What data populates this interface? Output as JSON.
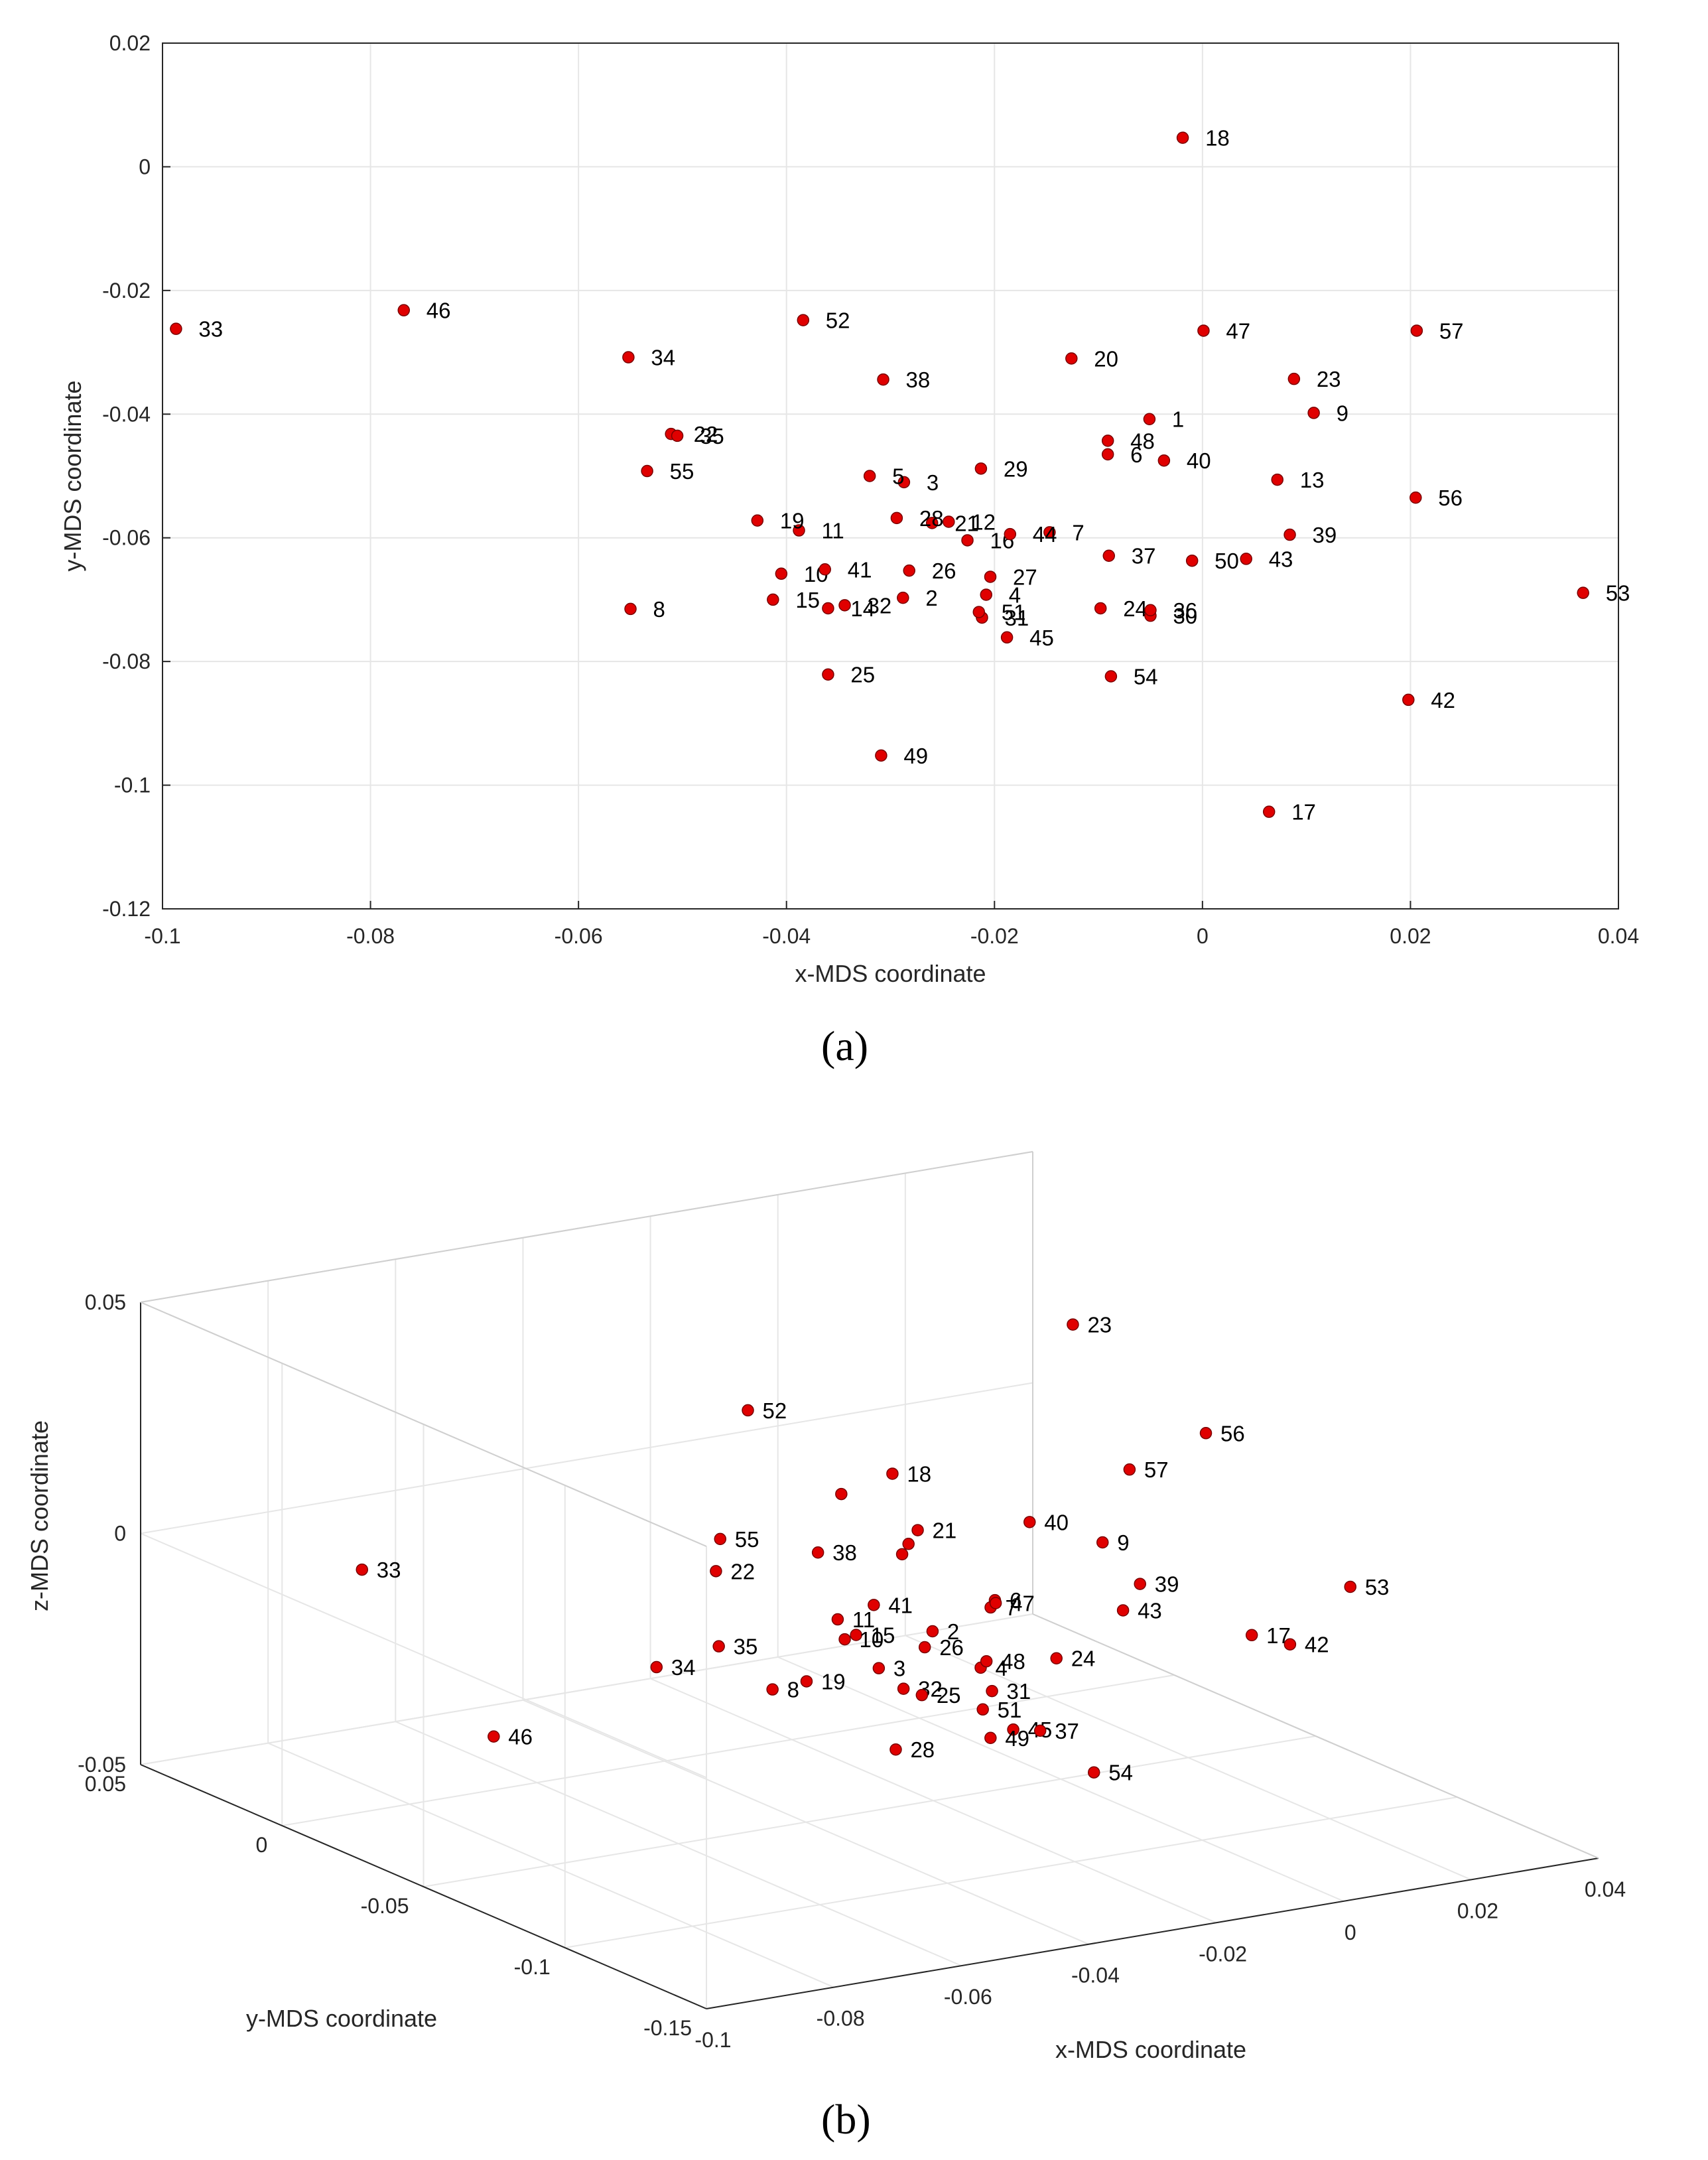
{
  "chart_data": [
    {
      "type": "scatter",
      "panel_label": "a",
      "xlabel": "x-MDS coordinate",
      "ylabel": "y-MDS coordinate",
      "xlim": [
        -0.1,
        0.04
      ],
      "ylim": [
        -0.12,
        0.02
      ],
      "xticks": [
        -0.1,
        -0.08,
        -0.06,
        -0.04,
        -0.02,
        0,
        0.02,
        0.04
      ],
      "yticks": [
        -0.12,
        -0.1,
        -0.08,
        -0.06,
        -0.04,
        -0.02,
        0,
        0.02
      ],
      "xtick_labels": [
        "-0.1",
        "-0.08",
        "-0.06",
        "-0.04",
        "-0.02",
        "0",
        "0.02",
        "0.04"
      ],
      "ytick_labels": [
        "-0.12",
        "-0.1",
        "-0.08",
        "-0.06",
        "-0.04",
        "-0.02",
        "0",
        "0.02"
      ],
      "grid": true,
      "marker_color": "#e00000",
      "points": [
        {
          "label": "1",
          "x": -0.0051,
          "y": -0.0408
        },
        {
          "label": "2",
          "x": -0.0288,
          "y": -0.0697
        },
        {
          "label": "3",
          "x": -0.0287,
          "y": -0.051
        },
        {
          "label": "4",
          "x": -0.0208,
          "y": -0.0692
        },
        {
          "label": "5",
          "x": -0.032,
          "y": -0.05
        },
        {
          "label": "6",
          "x": -0.0091,
          "y": -0.0465
        },
        {
          "label": "7",
          "x": -0.0147,
          "y": -0.0591
        },
        {
          "label": "8",
          "x": -0.055,
          "y": -0.0715
        },
        {
          "label": "9",
          "x": 0.0107,
          "y": -0.0398
        },
        {
          "label": "10",
          "x": -0.0405,
          "y": -0.0658
        },
        {
          "label": "11",
          "x": -0.0388,
          "y": -0.0588
        },
        {
          "label": "12",
          "x": -0.0244,
          "y": -0.0574
        },
        {
          "label": "13",
          "x": 0.0072,
          "y": -0.0506
        },
        {
          "label": "14",
          "x": -0.036,
          "y": -0.0714
        },
        {
          "label": "15",
          "x": -0.0413,
          "y": -0.07
        },
        {
          "label": "16",
          "x": -0.0226,
          "y": -0.0604
        },
        {
          "label": "17",
          "x": 0.0064,
          "y": -0.1043
        },
        {
          "label": "18",
          "x": -0.0019,
          "y": 0.0047
        },
        {
          "label": "19",
          "x": -0.0428,
          "y": -0.0572
        },
        {
          "label": "20",
          "x": -0.0126,
          "y": -0.031
        },
        {
          "label": "21",
          "x": -0.026,
          "y": -0.0576
        },
        {
          "label": "22",
          "x": -0.0511,
          "y": -0.0432
        },
        {
          "label": "23",
          "x": 0.0088,
          "y": -0.0343
        },
        {
          "label": "24",
          "x": -0.0098,
          "y": -0.0714
        },
        {
          "label": "25",
          "x": -0.036,
          "y": -0.0821
        },
        {
          "label": "26",
          "x": -0.0282,
          "y": -0.0653
        },
        {
          "label": "27",
          "x": -0.0204,
          "y": -0.0663
        },
        {
          "label": "28",
          "x": -0.0294,
          "y": -0.0568
        },
        {
          "label": "29",
          "x": -0.0213,
          "y": -0.0488
        },
        {
          "label": "30",
          "x": -0.005,
          "y": -0.0726
        },
        {
          "label": "31",
          "x": -0.0212,
          "y": -0.0729
        },
        {
          "label": "32",
          "x": -0.0344,
          "y": -0.0709
        },
        {
          "label": "33",
          "x": -0.0987,
          "y": -0.0262
        },
        {
          "label": "34",
          "x": -0.0552,
          "y": -0.0308
        },
        {
          "label": "35",
          "x": -0.0505,
          "y": -0.0435
        },
        {
          "label": "36",
          "x": -0.005,
          "y": -0.0717
        },
        {
          "label": "37",
          "x": -0.009,
          "y": -0.0629
        },
        {
          "label": "38",
          "x": -0.0307,
          "y": -0.0344
        },
        {
          "label": "39",
          "x": 0.0084,
          "y": -0.0595
        },
        {
          "label": "40",
          "x": -0.0037,
          "y": -0.0475
        },
        {
          "label": "41",
          "x": -0.0363,
          "y": -0.0651
        },
        {
          "label": "42",
          "x": 0.0198,
          "y": -0.0862
        },
        {
          "label": "43",
          "x": 0.0042,
          "y": -0.0634
        },
        {
          "label": "44",
          "x": -0.0185,
          "y": -0.0594
        },
        {
          "label": "45",
          "x": -0.0188,
          "y": -0.0761
        },
        {
          "label": "46",
          "x": -0.0768,
          "y": -0.0232
        },
        {
          "label": "47",
          "x": 0.0001,
          "y": -0.0265
        },
        {
          "label": "48",
          "x": -0.0091,
          "y": -0.0443
        },
        {
          "label": "49",
          "x": -0.0309,
          "y": -0.0952
        },
        {
          "label": "50",
          "x": -0.001,
          "y": -0.0637
        },
        {
          "label": "51",
          "x": -0.0215,
          "y": -0.072
        },
        {
          "label": "52",
          "x": -0.0384,
          "y": -0.0248
        },
        {
          "label": "53",
          "x": 0.0366,
          "y": -0.0689
        },
        {
          "label": "54",
          "x": -0.0088,
          "y": -0.0824
        },
        {
          "label": "55",
          "x": -0.0534,
          "y": -0.0492
        },
        {
          "label": "56",
          "x": 0.0205,
          "y": -0.0535
        },
        {
          "label": "57",
          "x": 0.0206,
          "y": -0.0265
        }
      ]
    },
    {
      "type": "scatter3d",
      "panel_label": "b",
      "xlabel": "x-MDS coordinate",
      "ylabel": "y-MDS coordinate",
      "zlabel": "z-MDS coordinate",
      "xlim": [
        -0.1,
        0.04
      ],
      "ylim": [
        -0.15,
        0.05
      ],
      "zlim": [
        -0.05,
        0.05
      ],
      "xtick_labels": [
        "-0.1",
        "-0.08",
        "-0.06",
        "-0.04",
        "-0.02",
        "0",
        "0.02",
        "0.04"
      ],
      "ytick_labels": [
        "0.05",
        "0",
        "-0.05",
        "-0.1",
        "-0.15"
      ],
      "ztick_labels": [
        "0.05",
        "0",
        "-0.05"
      ],
      "grid": true,
      "marker_color": "#e00000",
      "points": [
        {
          "label": "23",
          "x": 0.009,
          "y": -0.034,
          "z": 0.042
        },
        {
          "label": "52",
          "x": -0.038,
          "y": -0.025,
          "z": 0.032
        },
        {
          "label": "56",
          "x": 0.021,
          "y": -0.054,
          "z": 0.021
        },
        {
          "label": "",
          "x": -0.03,
          "y": -0.04,
          "z": 0.016
        },
        {
          "label": "55",
          "x": -0.053,
          "y": -0.049,
          "z": 0.014
        },
        {
          "label": "33",
          "x": -0.099,
          "y": -0.026,
          "z": 0.012
        },
        {
          "label": "21",
          "x": -0.026,
          "y": -0.058,
          "z": 0.012
        },
        {
          "label": "",
          "x": -0.027,
          "y": -0.057,
          "z": 0.009
        },
        {
          "label": "",
          "x": -0.028,
          "y": -0.057,
          "z": 0.007
        },
        {
          "label": "22",
          "x": -0.051,
          "y": -0.043,
          "z": 0.005
        },
        {
          "label": "40",
          "x": -0.004,
          "y": -0.048,
          "z": 0.006
        },
        {
          "label": "57",
          "x": 0.021,
          "y": -0.027,
          "z": 0.006
        },
        {
          "label": "38",
          "x": -0.031,
          "y": -0.034,
          "z": 0.002
        },
        {
          "label": "18",
          "x": -0.002,
          "y": 0.005,
          "z": 0.002
        },
        {
          "label": "41",
          "x": -0.036,
          "y": -0.065,
          "z": 0.0
        },
        {
          "label": "15",
          "x": -0.041,
          "y": -0.07,
          "z": -0.004
        },
        {
          "label": "11",
          "x": -0.039,
          "y": -0.059,
          "z": -0.004
        },
        {
          "label": "10",
          "x": -0.041,
          "y": -0.066,
          "z": -0.006
        },
        {
          "label": "9",
          "x": 0.011,
          "y": -0.04,
          "z": -0.004
        },
        {
          "label": "39",
          "x": 0.008,
          "y": -0.06,
          "z": -0.007
        },
        {
          "label": "2",
          "x": -0.029,
          "y": -0.07,
          "z": -0.006
        },
        {
          "label": "7",
          "x": -0.015,
          "y": -0.059,
          "z": -0.007
        },
        {
          "label": "6",
          "x": -0.009,
          "y": -0.047,
          "z": -0.01
        },
        {
          "label": "17",
          "x": 0.006,
          "y": -0.104,
          "z": -0.006
        },
        {
          "label": "26",
          "x": -0.028,
          "y": -0.065,
          "z": -0.011
        },
        {
          "label": "43",
          "x": 0.004,
          "y": -0.063,
          "z": -0.011
        },
        {
          "label": "35",
          "x": -0.051,
          "y": -0.044,
          "z": -0.011
        },
        {
          "label": "47",
          "x": 0.0,
          "y": -0.027,
          "z": -0.018
        },
        {
          "label": "19",
          "x": -0.043,
          "y": -0.057,
          "z": -0.017
        },
        {
          "label": "3",
          "x": -0.029,
          "y": -0.051,
          "z": -0.019
        },
        {
          "label": "4",
          "x": -0.021,
          "y": -0.069,
          "z": -0.016
        },
        {
          "label": "48",
          "x": -0.009,
          "y": -0.044,
          "z": -0.024
        },
        {
          "label": "34",
          "x": -0.055,
          "y": -0.031,
          "z": -0.018
        },
        {
          "label": "8",
          "x": -0.055,
          "y": -0.072,
          "z": -0.012
        },
        {
          "label": "24",
          "x": -0.01,
          "y": -0.071,
          "z": -0.016
        },
        {
          "label": "53",
          "x": 0.037,
          "y": -0.069,
          "z": -0.012
        },
        {
          "label": "32",
          "x": -0.034,
          "y": -0.071,
          "z": -0.017
        },
        {
          "label": "31",
          "x": -0.021,
          "y": -0.073,
          "z": -0.02
        },
        {
          "label": "25",
          "x": -0.036,
          "y": -0.082,
          "z": -0.015
        },
        {
          "label": "51",
          "x": -0.022,
          "y": -0.072,
          "z": -0.024
        },
        {
          "label": "42",
          "x": 0.02,
          "y": -0.086,
          "z": -0.016
        },
        {
          "label": "45",
          "x": -0.019,
          "y": -0.076,
          "z": -0.028
        },
        {
          "label": "37",
          "x": -0.009,
          "y": -0.063,
          "z": -0.034
        },
        {
          "label": "49",
          "x": -0.031,
          "y": -0.095,
          "z": -0.022
        },
        {
          "label": "28",
          "x": -0.029,
          "y": -0.057,
          "z": -0.035
        },
        {
          "label": "46",
          "x": -0.077,
          "y": -0.023,
          "z": -0.03
        },
        {
          "label": "54",
          "x": -0.009,
          "y": -0.082,
          "z": -0.038
        }
      ]
    }
  ],
  "captions": {
    "a": "(a)",
    "b": "(b)"
  }
}
